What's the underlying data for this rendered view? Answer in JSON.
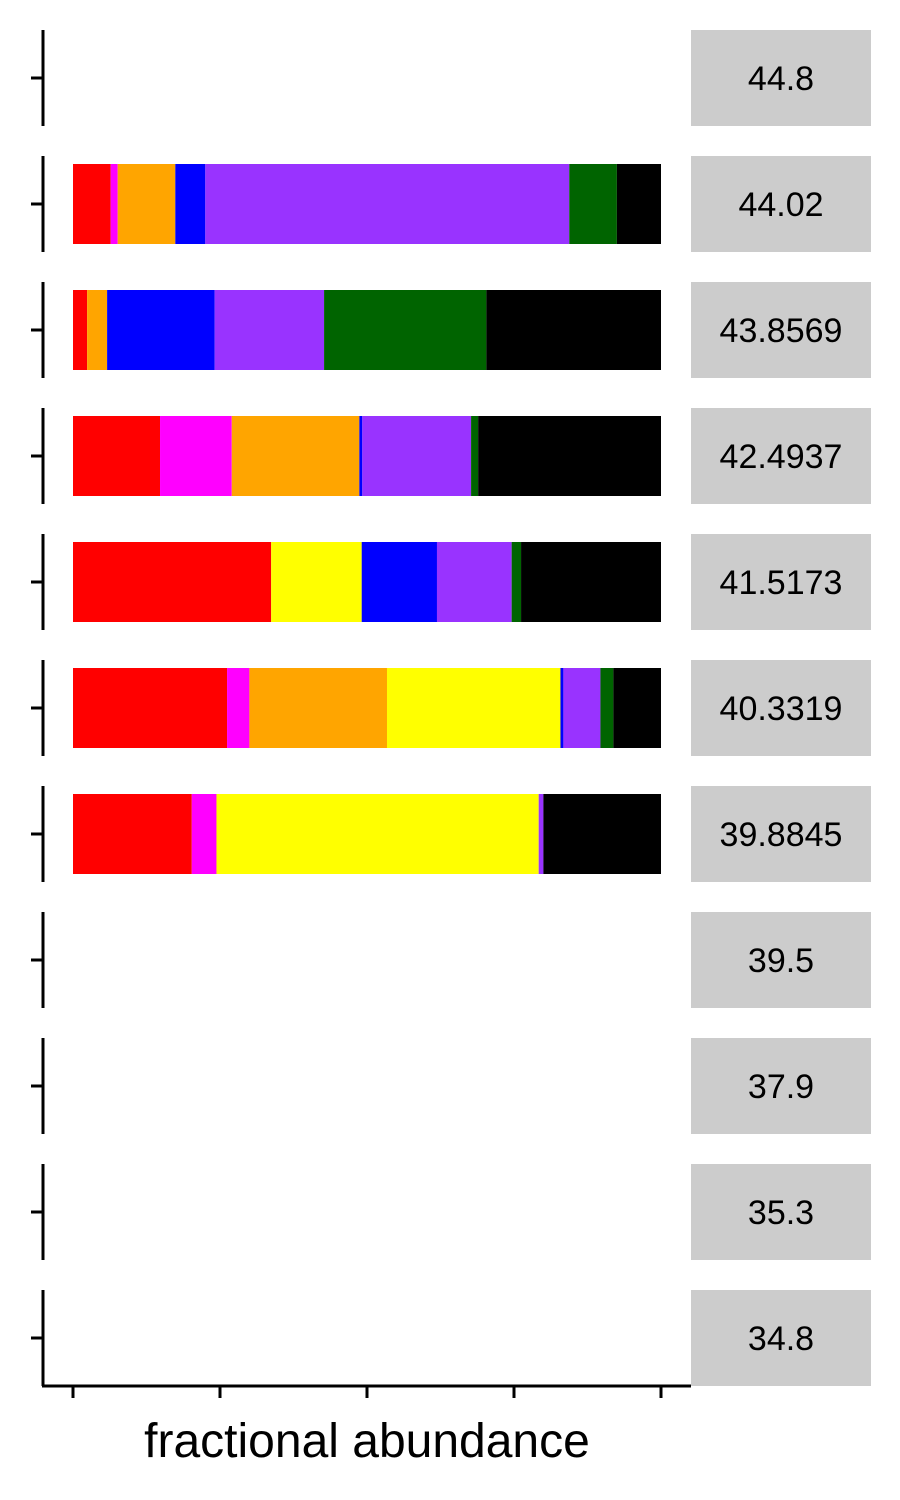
{
  "chart_data": {
    "type": "bar",
    "orientation": "horizontal",
    "stacked": true,
    "normalized": true,
    "xlabel": "fractional abundance",
    "xlim": [
      0,
      1
    ],
    "x_ticks": [
      0,
      0.25,
      0.5,
      0.75,
      1.0
    ],
    "x_tick_labels_shown": false,
    "grid": false,
    "legend": "none",
    "facets": [
      "44.8",
      "44.02",
      "43.8569",
      "42.4937",
      "41.5173",
      "40.3319",
      "39.8845",
      "39.5",
      "37.9",
      "35.3",
      "34.8"
    ],
    "series": [
      {
        "color": "#ff0000",
        "values": [
          0,
          0.064,
          0.024,
          0.148,
          0.337,
          0.262,
          0.202,
          0,
          0,
          0,
          0
        ]
      },
      {
        "color": "#ff00ff",
        "values": [
          0,
          0.012,
          0,
          0.122,
          0,
          0.038,
          0.042,
          0,
          0,
          0,
          0
        ]
      },
      {
        "color": "#ffa500",
        "values": [
          0,
          0.098,
          0.034,
          0.217,
          0,
          0.234,
          0,
          0,
          0,
          0,
          0
        ]
      },
      {
        "color": "#ffff00",
        "values": [
          0,
          0,
          0,
          0,
          0.154,
          0.295,
          0.548,
          0,
          0,
          0,
          0
        ]
      },
      {
        "color": "#0000ff",
        "values": [
          0,
          0.051,
          0.183,
          0.005,
          0.128,
          0.005,
          0,
          0,
          0,
          0,
          0
        ]
      },
      {
        "color": "#9933ff",
        "values": [
          0,
          0.619,
          0.186,
          0.185,
          0.127,
          0.063,
          0.008,
          0,
          0,
          0,
          0
        ]
      },
      {
        "color": "#006400",
        "values": [
          0,
          0.081,
          0.276,
          0.012,
          0.016,
          0.022,
          0,
          0,
          0,
          0,
          0
        ]
      },
      {
        "color": "#000000",
        "values": [
          0,
          0.075,
          0.297,
          0.311,
          0.238,
          0.081,
          0.2,
          0,
          0,
          0,
          0
        ]
      }
    ],
    "facet_strip_color": "#cccccc"
  }
}
